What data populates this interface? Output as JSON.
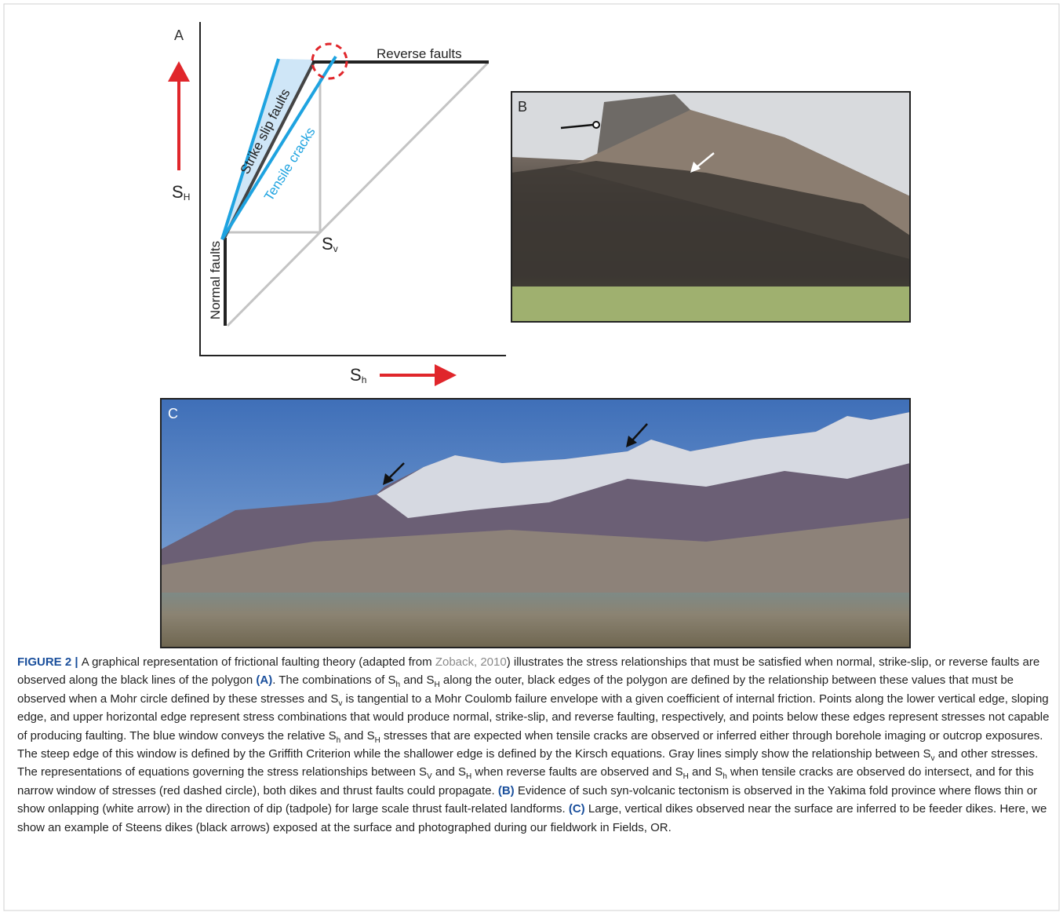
{
  "panel_a": {
    "label": "A",
    "reverse": "Reverse faults",
    "strike_slip": "Strike slip faults",
    "tensile": "Tensile cracks",
    "normal": "Normal faults",
    "s_big_h": {
      "letter": "S",
      "sub": "H"
    },
    "s_v": {
      "letter": "S",
      "sub": "v"
    },
    "s_small_h": {
      "letter": "S",
      "sub": "h"
    }
  },
  "panel_b": {
    "label": "B"
  },
  "panel_c": {
    "label": "C"
  },
  "caption": [
    {
      "text": "FIGURE 2 | ",
      "style": "head"
    },
    {
      "text": "A graphical representation of frictional faulting theory (adapted from "
    },
    {
      "text": "Zoback, 2010",
      "style": "link"
    },
    {
      "text": ") illustrates the stress relationships that must be satisfied when normal, strike-slip, or reverse faults are observed along the black lines of the polygon "
    },
    {
      "text": "(A)",
      "style": "bold"
    },
    {
      "text": ". The combinations of S"
    },
    {
      "text": "h",
      "style": "sub"
    },
    {
      "text": " and S"
    },
    {
      "text": "H",
      "style": "sub"
    },
    {
      "text": " along the outer, black edges of the polygon are defined by the relationship between these values that must be observed when a Mohr circle defined by these stresses and S"
    },
    {
      "text": "v",
      "style": "sub"
    },
    {
      "text": " is tangential to a Mohr Coulomb failure envelope with a given coefficient of internal friction. Points along the lower vertical edge, sloping edge, and upper horizontal edge represent stress combinations that would produce normal, strike-slip, and reverse faulting, respectively, and points below these edges represent stresses not capable of producing faulting. The blue window conveys the relative S"
    },
    {
      "text": "h",
      "style": "sub"
    },
    {
      "text": " and S"
    },
    {
      "text": "H",
      "style": "sub"
    },
    {
      "text": " stresses that are expected when tensile cracks are observed or inferred either through borehole imaging or outcrop exposures. The steep edge of this window is defined by the Griffith Criterion while the shallower edge is defined by the Kirsch equations. Gray lines simply show the relationship between S"
    },
    {
      "text": "v",
      "style": "sub"
    },
    {
      "text": " and other stresses. The representations of equations governing the stress relationships between S"
    },
    {
      "text": "V",
      "style": "sub"
    },
    {
      "text": " and S"
    },
    {
      "text": "H",
      "style": "sub"
    },
    {
      "text": " when reverse faults are observed and S"
    },
    {
      "text": "H",
      "style": "sub"
    },
    {
      "text": " and S"
    },
    {
      "text": "h",
      "style": "sub"
    },
    {
      "text": " when tensile cracks are observed do intersect, and for this narrow window of stresses (red dashed circle), both dikes and thrust faults could propagate. "
    },
    {
      "text": "(B)",
      "style": "bold"
    },
    {
      "text": " Evidence of such syn-volcanic tectonism is observed in the Yakima fold province where flows thin or show onlapping (white arrow) in the direction of dip (tadpole) for large scale thrust fault-related landforms. "
    },
    {
      "text": "(C)",
      "style": "bold"
    },
    {
      "text": " Large, vertical dikes observed near the surface are inferred to be feeder dikes. Here, we show an example of Steens dikes (black arrows) exposed at the surface and photographed during our fieldwork in Fields, OR."
    }
  ]
}
